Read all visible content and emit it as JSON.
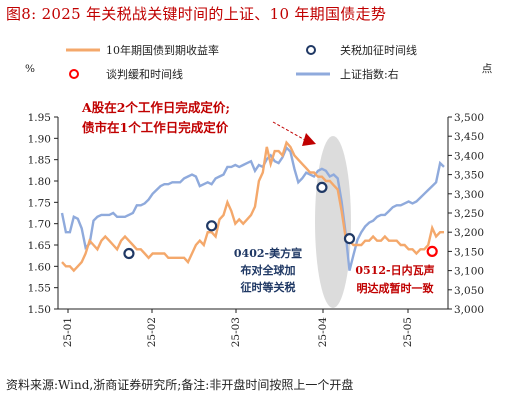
{
  "title": "图8:   2025 年关税战关键时间的上证、10 年期国债走势",
  "source": "资料来源:Wind,浙商证券研究所;备注:非开盘时间按照上一个开盘",
  "colors": {
    "bond": "#f4a86b",
    "index": "#8faadc",
    "tariff_marker": "#1f3864",
    "talk_marker": "#ff0000",
    "highlight": "#d0d0d0",
    "annotation_red": "#c00000",
    "annotation_blue": "#1f3864"
  },
  "chart_data": {
    "type": "line",
    "left_axis": {
      "unit": "%",
      "ylim": [
        1.5,
        1.95
      ],
      "ticks": [
        "1.50",
        "1.55",
        "1.60",
        "1.65",
        "1.70",
        "1.75",
        "1.80",
        "1.85",
        "1.90",
        "1.95"
      ]
    },
    "right_axis": {
      "unit": "点",
      "ylim": [
        3000,
        3500
      ],
      "ticks": [
        "3,000",
        "3,050",
        "3,100",
        "3,150",
        "3,200",
        "3,250",
        "3,300",
        "3,350",
        "3,400",
        "3,450",
        "3,500"
      ]
    },
    "x_ticks": [
      "25-01",
      "25-02",
      "25-03",
      "25-04",
      "25-05"
    ],
    "legend": {
      "bond": "10年期国债到期收益率",
      "tariff": "关税加征时间线",
      "talk": "谈判缓和时间线",
      "index": "上证指数:右"
    },
    "series": [
      {
        "name": "10年期国债到期收益率",
        "axis": "left",
        "points": [
          [
            0,
            1.61
          ],
          [
            1,
            1.6
          ],
          [
            2,
            1.6
          ],
          [
            3,
            1.59
          ],
          [
            4,
            1.6
          ],
          [
            5,
            1.61
          ],
          [
            6,
            1.63
          ],
          [
            7,
            1.66
          ],
          [
            8,
            1.65
          ],
          [
            9,
            1.64
          ],
          [
            10,
            1.66
          ],
          [
            11,
            1.67
          ],
          [
            12,
            1.66
          ],
          [
            13,
            1.65
          ],
          [
            14,
            1.64
          ],
          [
            15,
            1.66
          ],
          [
            16,
            1.67
          ],
          [
            17,
            1.66
          ],
          [
            18,
            1.65
          ],
          [
            19,
            1.64
          ],
          [
            20,
            1.64
          ],
          [
            21,
            1.63
          ],
          [
            22,
            1.62
          ],
          [
            23,
            1.63
          ],
          [
            24,
            1.63
          ],
          [
            25,
            1.63
          ],
          [
            26,
            1.63
          ],
          [
            27,
            1.62
          ],
          [
            28,
            1.62
          ],
          [
            29,
            1.62
          ],
          [
            30,
            1.62
          ],
          [
            31,
            1.62
          ],
          [
            32,
            1.61
          ],
          [
            33,
            1.63
          ],
          [
            34,
            1.65
          ],
          [
            35,
            1.66
          ],
          [
            36,
            1.65
          ],
          [
            37,
            1.68
          ],
          [
            38,
            1.68
          ],
          [
            39,
            1.67
          ],
          [
            40,
            1.71
          ],
          [
            41,
            1.72
          ],
          [
            42,
            1.75
          ],
          [
            43,
            1.73
          ],
          [
            44,
            1.7
          ],
          [
            45,
            1.71
          ],
          [
            46,
            1.7
          ],
          [
            47,
            1.71
          ],
          [
            48,
            1.72
          ],
          [
            49,
            1.74
          ],
          [
            50,
            1.8
          ],
          [
            51,
            1.82
          ],
          [
            52,
            1.88
          ],
          [
            53,
            1.84
          ],
          [
            54,
            1.87
          ],
          [
            55,
            1.87
          ],
          [
            56,
            1.86
          ],
          [
            57,
            1.89
          ],
          [
            58,
            1.88
          ],
          [
            59,
            1.86
          ],
          [
            60,
            1.85
          ],
          [
            61,
            1.84
          ],
          [
            62,
            1.83
          ],
          [
            63,
            1.82
          ],
          [
            64,
            1.82
          ],
          [
            65,
            1.81
          ],
          [
            66,
            1.81
          ],
          [
            67,
            1.8
          ],
          [
            68,
            1.8
          ],
          [
            69,
            1.79
          ],
          [
            70,
            1.78
          ],
          [
            71,
            1.73
          ],
          [
            72,
            1.67
          ],
          [
            73,
            1.66
          ],
          [
            74,
            1.65
          ],
          [
            75,
            1.65
          ],
          [
            76,
            1.65
          ],
          [
            77,
            1.66
          ],
          [
            78,
            1.66
          ],
          [
            79,
            1.67
          ],
          [
            80,
            1.66
          ],
          [
            81,
            1.66
          ],
          [
            82,
            1.67
          ],
          [
            83,
            1.66
          ],
          [
            84,
            1.66
          ],
          [
            85,
            1.66
          ],
          [
            86,
            1.65
          ],
          [
            87,
            1.65
          ],
          [
            88,
            1.64
          ],
          [
            89,
            1.64
          ],
          [
            90,
            1.63
          ],
          [
            91,
            1.64
          ],
          [
            92,
            1.64
          ],
          [
            93,
            1.65
          ],
          [
            94,
            1.69
          ],
          [
            95,
            1.67
          ],
          [
            96,
            1.68
          ],
          [
            97,
            1.68
          ]
        ]
      },
      {
        "name": "上证指数",
        "axis": "right",
        "points": [
          [
            0,
            3250
          ],
          [
            1,
            3200
          ],
          [
            2,
            3200
          ],
          [
            3,
            3240
          ],
          [
            4,
            3235
          ],
          [
            5,
            3210
          ],
          [
            6,
            3160
          ],
          [
            7,
            3170
          ],
          [
            8,
            3230
          ],
          [
            9,
            3240
          ],
          [
            10,
            3245
          ],
          [
            11,
            3245
          ],
          [
            12,
            3245
          ],
          [
            13,
            3250
          ],
          [
            14,
            3240
          ],
          [
            15,
            3240
          ],
          [
            16,
            3240
          ],
          [
            17,
            3245
          ],
          [
            18,
            3250
          ],
          [
            19,
            3270
          ],
          [
            20,
            3270
          ],
          [
            21,
            3275
          ],
          [
            22,
            3285
          ],
          [
            23,
            3300
          ],
          [
            24,
            3310
          ],
          [
            25,
            3320
          ],
          [
            26,
            3325
          ],
          [
            27,
            3325
          ],
          [
            28,
            3330
          ],
          [
            29,
            3330
          ],
          [
            30,
            3330
          ],
          [
            31,
            3340
          ],
          [
            32,
            3345
          ],
          [
            33,
            3350
          ],
          [
            34,
            3345
          ],
          [
            35,
            3320
          ],
          [
            36,
            3325
          ],
          [
            37,
            3330
          ],
          [
            38,
            3325
          ],
          [
            39,
            3340
          ],
          [
            40,
            3345
          ],
          [
            41,
            3350
          ],
          [
            42,
            3370
          ],
          [
            43,
            3370
          ],
          [
            44,
            3375
          ],
          [
            45,
            3370
          ],
          [
            46,
            3375
          ],
          [
            47,
            3380
          ],
          [
            48,
            3385
          ],
          [
            49,
            3360
          ],
          [
            50,
            3375
          ],
          [
            51,
            3370
          ],
          [
            52,
            3390
          ],
          [
            53,
            3400
          ],
          [
            54,
            3385
          ],
          [
            55,
            3380
          ],
          [
            56,
            3395
          ],
          [
            57,
            3420
          ],
          [
            58,
            3410
          ],
          [
            59,
            3365
          ],
          [
            60,
            3330
          ],
          [
            61,
            3340
          ],
          [
            62,
            3355
          ],
          [
            63,
            3350
          ],
          [
            64,
            3345
          ],
          [
            65,
            3360
          ],
          [
            66,
            3365
          ],
          [
            67,
            3360
          ],
          [
            68,
            3345
          ],
          [
            69,
            3350
          ],
          [
            70,
            3340
          ],
          [
            71,
            3280
          ],
          [
            72,
            3200
          ],
          [
            73,
            3100
          ],
          [
            74,
            3140
          ],
          [
            75,
            3180
          ],
          [
            76,
            3200
          ],
          [
            77,
            3215
          ],
          [
            78,
            3225
          ],
          [
            79,
            3230
          ],
          [
            80,
            3240
          ],
          [
            81,
            3245
          ],
          [
            82,
            3245
          ],
          [
            83,
            3255
          ],
          [
            84,
            3265
          ],
          [
            85,
            3270
          ],
          [
            86,
            3270
          ],
          [
            87,
            3275
          ],
          [
            88,
            3280
          ],
          [
            89,
            3275
          ],
          [
            90,
            3280
          ],
          [
            91,
            3290
          ],
          [
            92,
            3300
          ],
          [
            93,
            3310
          ],
          [
            94,
            3320
          ],
          [
            95,
            3330
          ],
          [
            96,
            3380
          ],
          [
            97,
            3370
          ]
        ]
      }
    ],
    "tariff_markers": [
      [
        17,
        1.63
      ],
      [
        38,
        1.695
      ],
      [
        66,
        1.785
      ],
      [
        73,
        1.665
      ]
    ],
    "talk_markers": [
      [
        94,
        1.635
      ]
    ],
    "annotations": {
      "top_red": [
        "A股在2个工作日完成定价;",
        "债市在1个工作日完成定价"
      ],
      "mid_blue": [
        "0402-美方宣",
        "布对全球加",
        "征时等关税"
      ],
      "right_red": [
        "0512-日内瓦声",
        "明达成暂时一致"
      ]
    }
  }
}
